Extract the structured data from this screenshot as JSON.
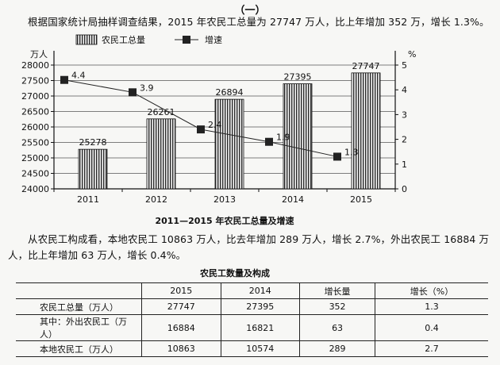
{
  "section_title": "（一）",
  "paragraph1": "根据国家统计局抽样调查结果，2015 年农民工总量为 27747 万人，比上年增加 352 万，增长 1.3%。",
  "paragraph2": "从农民工构成看，本地农民工 10863 万人，比去年增加 289 万人，增长 2.7%，外出农民工 16884 万人，比上年增加 63 万人，增长 0.4%。",
  "chart_data": {
    "type": "bar",
    "title": "2011—2015 年农民工总量及增速",
    "categories": [
      "2011",
      "2012",
      "2013",
      "2014",
      "2015"
    ],
    "series": [
      {
        "name": "农民工总量",
        "type": "bar",
        "axis": "left",
        "values": [
          25278,
          26261,
          26894,
          27395,
          27747
        ]
      },
      {
        "name": "增速",
        "type": "line",
        "axis": "right",
        "values": [
          4.4,
          3.9,
          2.4,
          1.9,
          1.3
        ]
      }
    ],
    "ylabel_left": "万人",
    "ylabel_right": "%",
    "ylim_left": [
      24000,
      28000
    ],
    "yticks_left": [
      24000,
      24500,
      25000,
      25500,
      26000,
      26500,
      27000,
      27500,
      28000
    ],
    "ylim_right": [
      0,
      5
    ],
    "yticks_right": [
      0,
      1,
      2,
      3,
      4,
      5
    ],
    "legend_position": "top",
    "grid": "horizontal"
  },
  "table": {
    "title": "农民工数量及构成",
    "headers": [
      "",
      "2015",
      "2014",
      "增长量",
      "增长（%）"
    ],
    "rows": [
      [
        "农民工总量（万人）",
        "27747",
        "27395",
        "352",
        "1.3"
      ],
      [
        "其中：外出农民工（万人）",
        "16884",
        "16821",
        "63",
        "0.4"
      ],
      [
        "本地农民工（万人）",
        "10863",
        "10574",
        "289",
        "2.7"
      ]
    ]
  }
}
